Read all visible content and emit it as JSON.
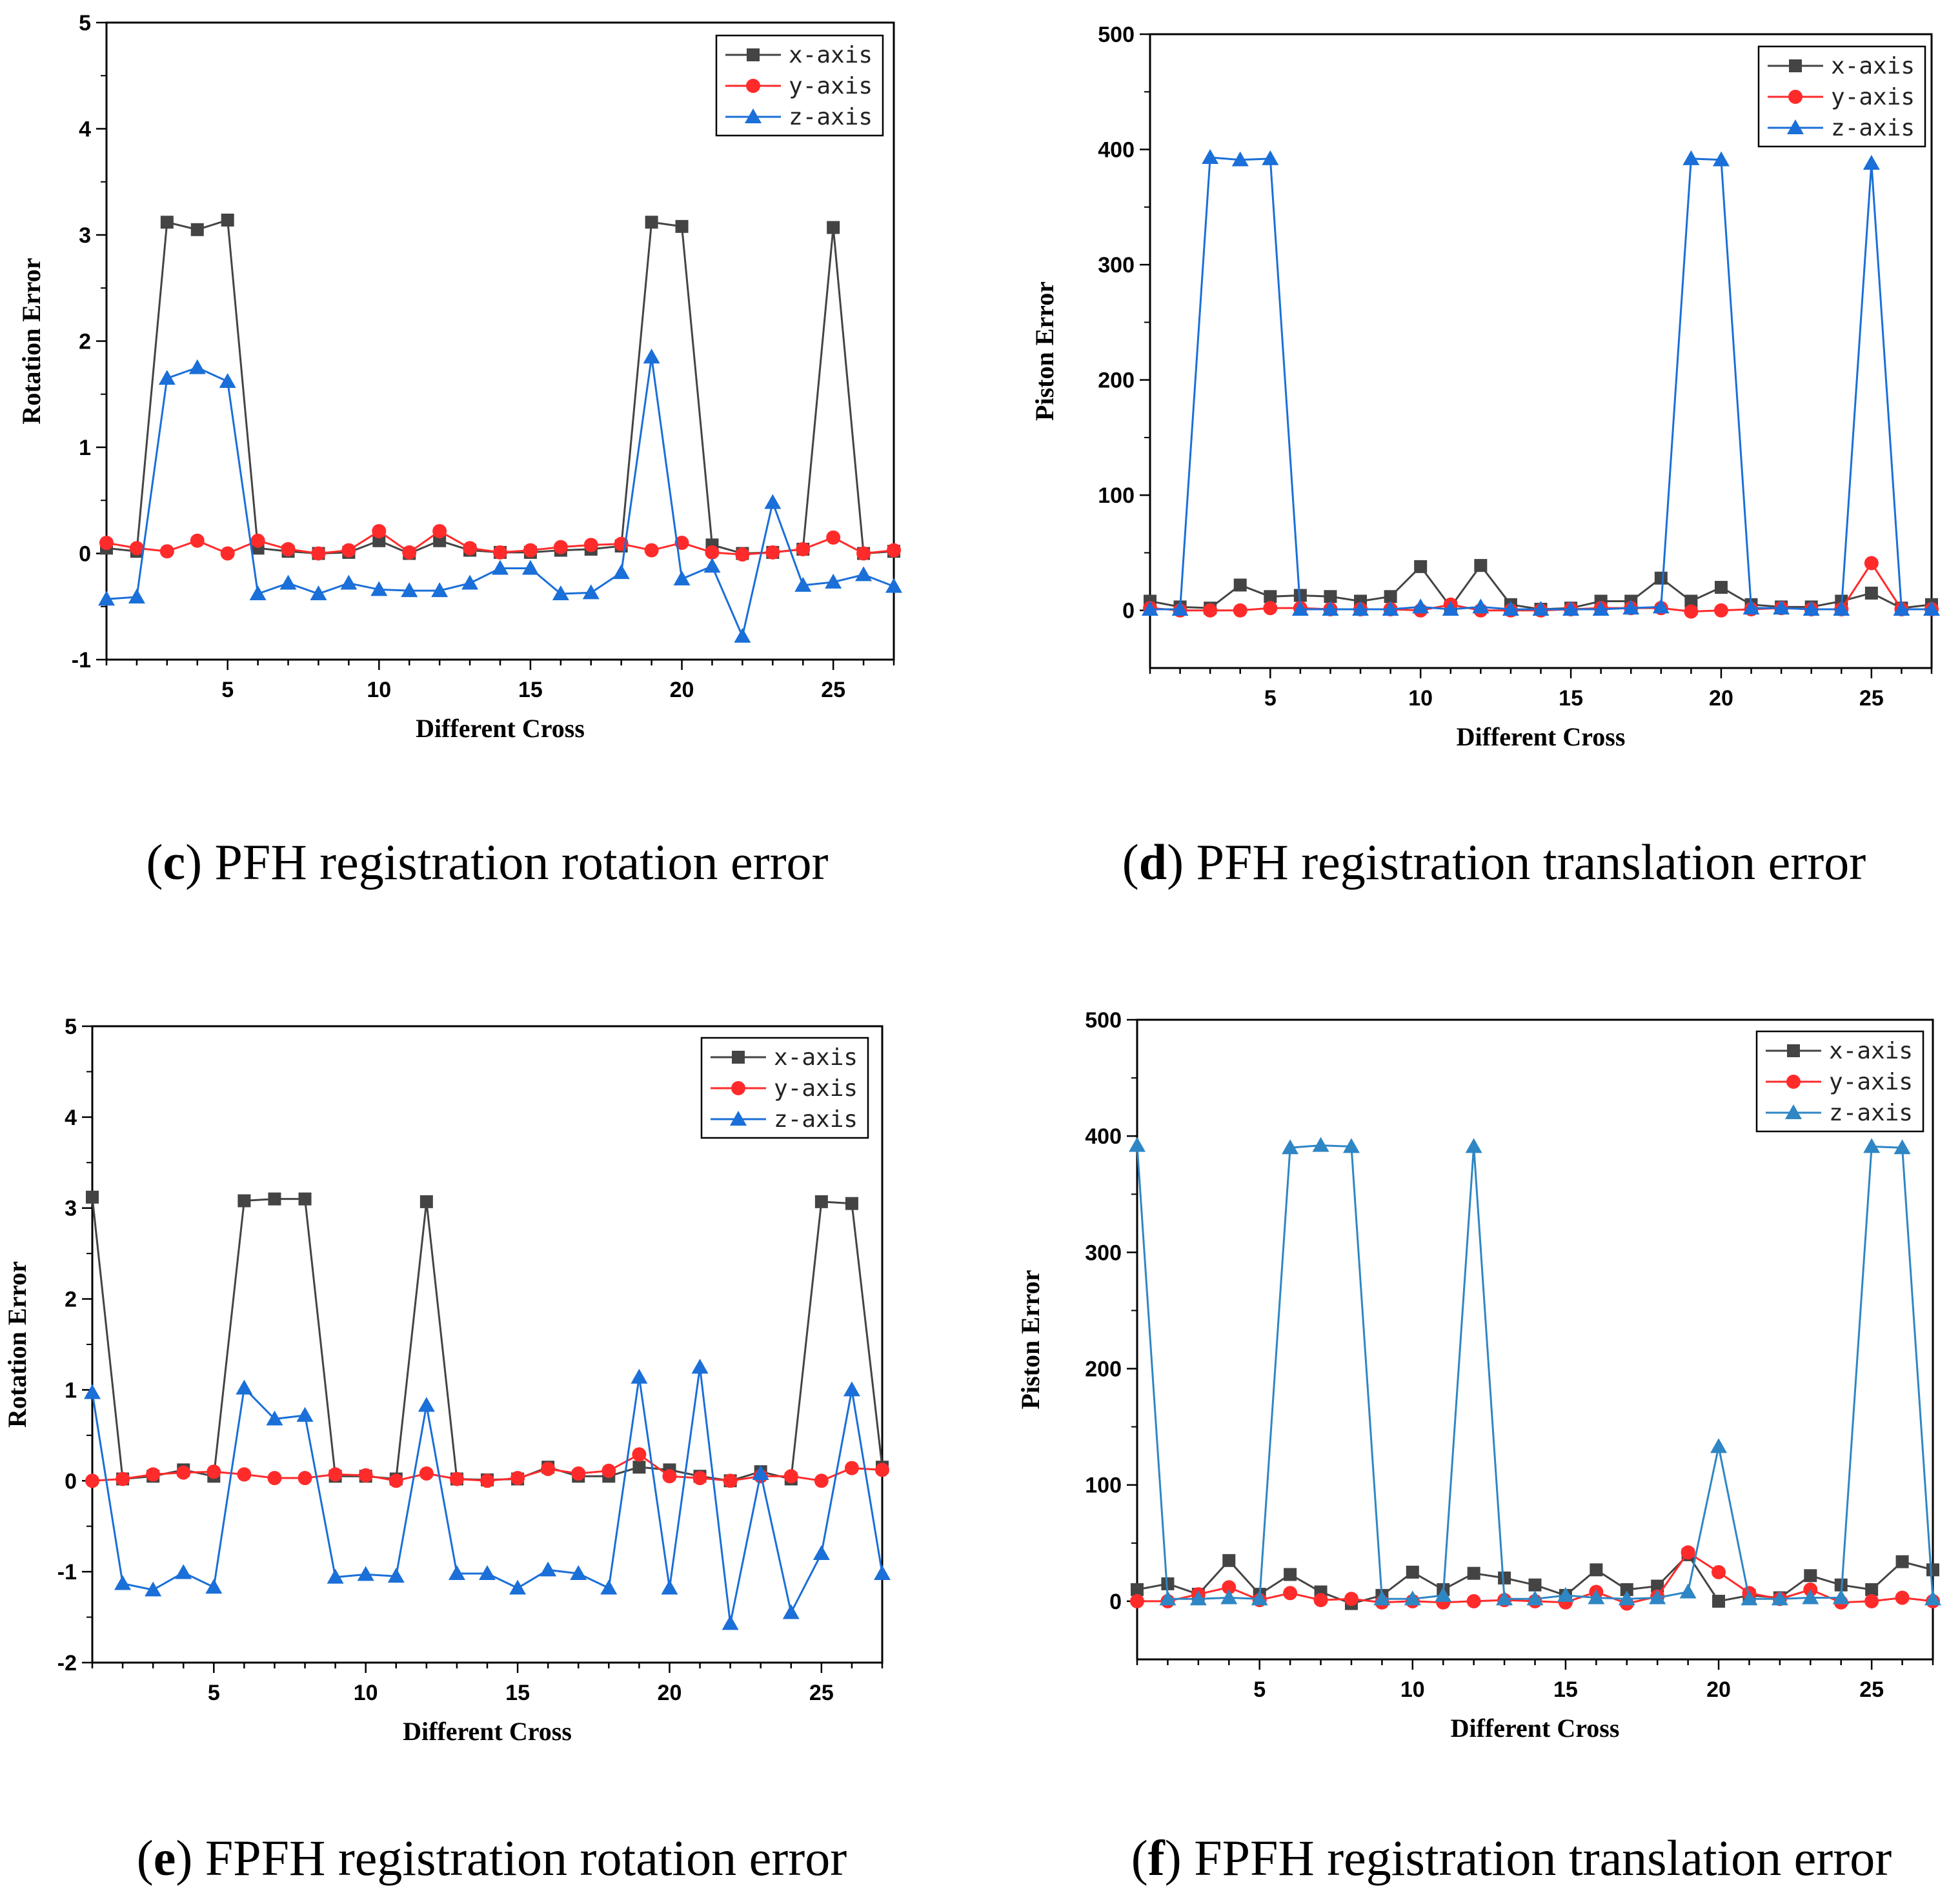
{
  "colors": {
    "x": "#444444",
    "y": "#ff2b2b",
    "z": "#1a6fd8",
    "z_alt": "#2f86c4",
    "axis": "#000000"
  },
  "panels": [
    {
      "caption_prefix": "(",
      "caption_letter": "c",
      "caption_suffix": ") PFH registration rotation error",
      "xlabel": "Different Cross",
      "ylabel": "Rotation Error",
      "xticks": [
        "5",
        "10",
        "15",
        "20",
        "25"
      ],
      "yticks": [
        "5",
        "4",
        "3",
        "2",
        "1",
        "0",
        "-1"
      ],
      "legend": [
        "x-axis",
        "y-axis",
        "z-axis"
      ]
    },
    {
      "caption_prefix": "(",
      "caption_letter": "d",
      "caption_suffix": ") PFH registration translation error",
      "xlabel": "Different Cross",
      "ylabel": "Piston Error",
      "xticks": [
        "5",
        "10",
        "15",
        "20",
        "25"
      ],
      "yticks": [
        "500",
        "400",
        "300",
        "200",
        "100",
        "0"
      ],
      "legend": [
        "x-axis",
        "y-axis",
        "z-axis"
      ]
    },
    {
      "caption_prefix": "(",
      "caption_letter": "e",
      "caption_suffix": ") FPFH registration rotation error",
      "xlabel": "Different Cross",
      "ylabel": "Rotation Error",
      "xticks": [
        "5",
        "10",
        "15",
        "20",
        "25"
      ],
      "yticks": [
        "5",
        "4",
        "3",
        "2",
        "1",
        "0",
        "-1",
        "-2"
      ],
      "legend": [
        "x-axis",
        "y-axis",
        "z-axis"
      ]
    },
    {
      "caption_prefix": "(",
      "caption_letter": "f",
      "caption_suffix": ") FPFH registration translation error",
      "xlabel": "Different Cross",
      "ylabel": "Piston Error",
      "xticks": [
        "5",
        "10",
        "15",
        "20",
        "25"
      ],
      "yticks": [
        "500",
        "400",
        "300",
        "200",
        "100",
        "0"
      ],
      "legend": [
        "x-axis",
        "y-axis",
        "z-axis"
      ]
    }
  ],
  "chart_data": [
    {
      "type": "line",
      "title": "PFH registration rotation error",
      "xlabel": "Different Cross",
      "ylabel": "Rotation Error",
      "xlim": [
        1,
        27
      ],
      "ylim": [
        -1,
        5
      ],
      "x": [
        1,
        2,
        3,
        4,
        5,
        6,
        7,
        8,
        9,
        10,
        11,
        12,
        13,
        14,
        15,
        16,
        17,
        18,
        19,
        20,
        21,
        22,
        23,
        24,
        25,
        26,
        27
      ],
      "series": [
        {
          "name": "x-axis",
          "marker": "square",
          "values": [
            0.05,
            0.02,
            3.12,
            3.05,
            3.14,
            0.05,
            0.02,
            0.0,
            0.01,
            0.12,
            0.0,
            0.12,
            0.03,
            0.01,
            0.01,
            0.03,
            0.04,
            0.07,
            3.12,
            3.08,
            0.08,
            0.0,
            0.01,
            0.04,
            3.07,
            0.0,
            0.02
          ]
        },
        {
          "name": "y-axis",
          "marker": "circle",
          "values": [
            0.1,
            0.05,
            0.02,
            0.12,
            0.0,
            0.12,
            0.04,
            0.0,
            0.03,
            0.21,
            0.01,
            0.21,
            0.05,
            0.01,
            0.03,
            0.06,
            0.08,
            0.09,
            0.03,
            0.1,
            0.01,
            -0.01,
            0.01,
            0.04,
            0.15,
            0.0,
            0.03
          ]
        },
        {
          "name": "z-axis",
          "marker": "triangle",
          "values": [
            -0.43,
            -0.41,
            1.65,
            1.75,
            1.62,
            -0.38,
            -0.28,
            -0.38,
            -0.28,
            -0.34,
            -0.35,
            -0.35,
            -0.28,
            -0.14,
            -0.14,
            -0.38,
            -0.37,
            -0.18,
            1.85,
            -0.24,
            -0.12,
            -0.78,
            0.48,
            -0.3,
            -0.27,
            -0.2,
            -0.31
          ]
        }
      ]
    },
    {
      "type": "line",
      "title": "PFH registration translation error",
      "xlabel": "Different Cross",
      "ylabel": "Piston Error",
      "xlim": [
        1,
        27
      ],
      "ylim": [
        -50,
        500
      ],
      "x": [
        1,
        2,
        3,
        4,
        5,
        6,
        7,
        8,
        9,
        10,
        11,
        12,
        13,
        14,
        15,
        16,
        17,
        18,
        19,
        20,
        21,
        22,
        23,
        24,
        25,
        26,
        27
      ],
      "series": [
        {
          "name": "x-axis",
          "marker": "square",
          "values": [
            8,
            3,
            2,
            22,
            12,
            13,
            12,
            8,
            12,
            38,
            3,
            39,
            5,
            1,
            2,
            8,
            8,
            28,
            8,
            20,
            5,
            3,
            3,
            8,
            15,
            2,
            5
          ]
        },
        {
          "name": "y-axis",
          "marker": "circle",
          "values": [
            2,
            0,
            0,
            0,
            2,
            2,
            1,
            1,
            1,
            0,
            5,
            0,
            0,
            0,
            1,
            2,
            2,
            2,
            -1,
            0,
            1,
            2,
            1,
            1,
            41,
            1,
            1
          ]
        },
        {
          "name": "z-axis",
          "marker": "triangle",
          "values": [
            1,
            1,
            393,
            391,
            392,
            1,
            1,
            1,
            1,
            3,
            1,
            3,
            1,
            1,
            1,
            1,
            2,
            3,
            392,
            391,
            2,
            2,
            1,
            1,
            388,
            1,
            1
          ]
        }
      ]
    },
    {
      "type": "line",
      "title": "FPFH registration rotation error",
      "xlabel": "Different Cross",
      "ylabel": "Rotation Error",
      "xlim": [
        1,
        27
      ],
      "ylim": [
        -2,
        5
      ],
      "x": [
        1,
        2,
        3,
        4,
        5,
        6,
        7,
        8,
        9,
        10,
        11,
        12,
        13,
        14,
        15,
        16,
        17,
        18,
        19,
        20,
        21,
        22,
        23,
        24,
        25,
        26,
        27
      ],
      "series": [
        {
          "name": "x-axis",
          "marker": "square",
          "values": [
            3.12,
            0.02,
            0.05,
            0.12,
            0.05,
            3.08,
            3.1,
            3.1,
            0.05,
            0.05,
            0.02,
            3.07,
            0.02,
            0.01,
            0.02,
            0.15,
            0.05,
            0.05,
            0.15,
            0.12,
            0.05,
            0.0,
            0.1,
            0.02,
            3.07,
            3.05,
            0.15
          ]
        },
        {
          "name": "y-axis",
          "marker": "circle",
          "values": [
            0.0,
            0.02,
            0.07,
            0.09,
            0.1,
            0.07,
            0.03,
            0.03,
            0.07,
            0.06,
            0.0,
            0.08,
            0.02,
            0.0,
            0.03,
            0.13,
            0.08,
            0.11,
            0.29,
            0.05,
            0.03,
            0.0,
            0.05,
            0.05,
            0.0,
            0.14,
            0.12
          ]
        },
        {
          "name": "z-axis",
          "marker": "triangle",
          "values": [
            0.97,
            -1.13,
            -1.2,
            -1.01,
            -1.17,
            1.02,
            0.68,
            0.72,
            -1.06,
            -1.03,
            -1.05,
            0.83,
            -1.02,
            -1.02,
            -1.18,
            -0.98,
            -1.02,
            -1.18,
            1.14,
            -1.18,
            1.25,
            -1.57,
            0.08,
            -1.45,
            -0.8,
            1.0,
            -1.02
          ]
        }
      ]
    },
    {
      "type": "line",
      "title": "FPFH registration translation error",
      "xlabel": "Different Cross",
      "ylabel": "Piston Error",
      "xlim": [
        1,
        27
      ],
      "ylim": [
        -50,
        500
      ],
      "x": [
        1,
        2,
        3,
        4,
        5,
        6,
        7,
        8,
        9,
        10,
        11,
        12,
        13,
        14,
        15,
        16,
        17,
        18,
        19,
        20,
        21,
        22,
        23,
        24,
        25,
        26,
        27
      ],
      "series": [
        {
          "name": "x-axis",
          "marker": "square",
          "values": [
            10,
            15,
            6,
            35,
            6,
            23,
            8,
            -2,
            5,
            25,
            10,
            24,
            20,
            14,
            5,
            27,
            10,
            13,
            40,
            0,
            5,
            3,
            22,
            14,
            10,
            34,
            27
          ]
        },
        {
          "name": "y-axis",
          "marker": "circle",
          "values": [
            0,
            0,
            6,
            12,
            1,
            7,
            1,
            2,
            -1,
            0,
            -1,
            0,
            1,
            0,
            -1,
            8,
            -2,
            4,
            42,
            25,
            7,
            2,
            10,
            -1,
            0,
            3,
            0
          ]
        },
        {
          "name": "z-axis",
          "marker": "triangle",
          "values": [
            392,
            2,
            2,
            3,
            2,
            390,
            392,
            391,
            2,
            2,
            5,
            391,
            2,
            2,
            5,
            3,
            2,
            3,
            8,
            133,
            2,
            2,
            3,
            3,
            391,
            390,
            2
          ]
        }
      ]
    }
  ]
}
